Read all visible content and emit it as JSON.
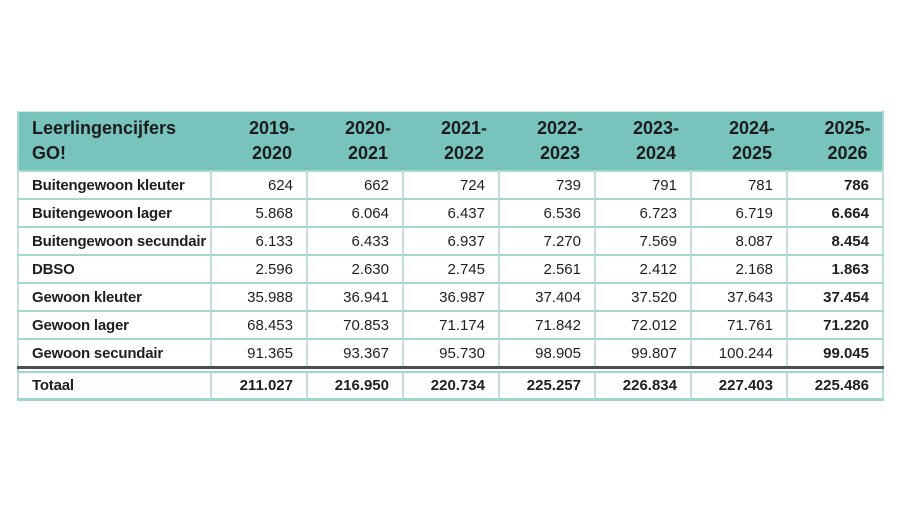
{
  "table": {
    "title": {
      "line1": "Leerlingencijfers",
      "line2": "GO!"
    },
    "columns": [
      {
        "line1": "2019-",
        "line2": "2020"
      },
      {
        "line1": "2020-",
        "line2": "2021"
      },
      {
        "line1": "2021-",
        "line2": "2022"
      },
      {
        "line1": "2022-",
        "line2": "2023"
      },
      {
        "line1": "2023-",
        "line2": "2024"
      },
      {
        "line1": "2024-",
        "line2": "2025"
      },
      {
        "line1": "2025-",
        "line2": "2026"
      }
    ],
    "rows": [
      {
        "label": "Buitengewoon kleuter",
        "values": [
          "624",
          "662",
          "724",
          "739",
          "791",
          "781",
          "786"
        ]
      },
      {
        "label": "Buitengewoon lager",
        "values": [
          "5.868",
          "6.064",
          "6.437",
          "6.536",
          "6.723",
          "6.719",
          "6.664"
        ]
      },
      {
        "label": "Buitengewoon secundair",
        "values": [
          "6.133",
          "6.433",
          "6.937",
          "7.270",
          "7.569",
          "8.087",
          "8.454"
        ]
      },
      {
        "label": "DBSO",
        "values": [
          "2.596",
          "2.630",
          "2.745",
          "2.561",
          "2.412",
          "2.168",
          "1.863"
        ]
      },
      {
        "label": "Gewoon kleuter",
        "values": [
          "35.988",
          "36.941",
          "36.987",
          "37.404",
          "37.520",
          "37.643",
          "37.454"
        ]
      },
      {
        "label": "Gewoon lager",
        "values": [
          "68.453",
          "70.853",
          "71.174",
          "71.842",
          "72.012",
          "71.761",
          "71.220"
        ]
      },
      {
        "label": "Gewoon secundair",
        "values": [
          "91.365",
          "93.367",
          "95.730",
          "98.905",
          "99.807",
          "100.244",
          "99.045"
        ]
      }
    ],
    "total": {
      "label": "Totaal",
      "values": [
        "211.027",
        "216.950",
        "220.734",
        "225.257",
        "226.834",
        "227.403",
        "225.486"
      ]
    }
  },
  "colors": {
    "header_teal": "#78c4bc",
    "row_separator": "#a6d8d2",
    "column_separator": "#c4dfdb",
    "total_divider_dark": "#4d4d4d",
    "outer_border": "#9ed5cf",
    "text": "#1c1c1c",
    "background": "#ffffff"
  }
}
